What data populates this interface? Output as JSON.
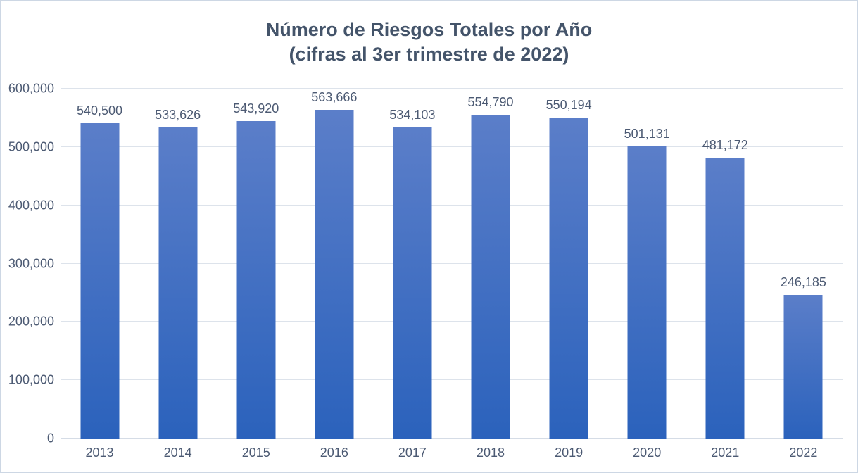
{
  "chart_data": {
    "type": "bar",
    "title": "Número de Riesgos Totales por Año",
    "subtitle": "(cifras al 3er trimestre de 2022)",
    "categories": [
      "2013",
      "2014",
      "2015",
      "2016",
      "2017",
      "2018",
      "2019",
      "2020",
      "2021",
      "2022"
    ],
    "values": [
      540500,
      533626,
      543920,
      563666,
      534103,
      554790,
      550194,
      501131,
      481172,
      246185
    ],
    "data_labels": [
      "540,500",
      "533,626",
      "543,920",
      "563,666",
      "534,103",
      "554,790",
      "550,194",
      "501,131",
      "481,172",
      "246,185"
    ],
    "xlabel": "",
    "ylabel": "",
    "ylim": [
      0,
      600000
    ],
    "y_tick_step": 100000,
    "y_tick_labels": [
      "0",
      "100,000",
      "200,000",
      "300,000",
      "400,000",
      "500,000",
      "600,000"
    ],
    "grid": true,
    "legend_position": "none",
    "colors": {
      "bar_gradient_top": "#5B7EC9",
      "bar_gradient_bottom": "#2B62BC",
      "title_text": "#44546A",
      "axis_text": "#4C5A73",
      "gridline": "#DDE3EB",
      "axis_line": "#D5DCE6",
      "frame_border": "#CDD7E4",
      "background": "#FFFFFF"
    }
  }
}
